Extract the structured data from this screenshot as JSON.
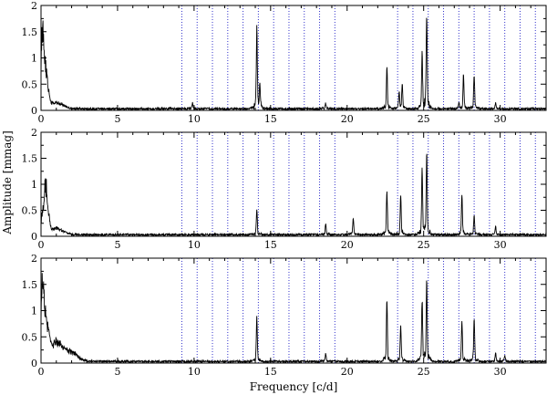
{
  "chart_data": {
    "type": "line",
    "xlabel": "Frequency [c/d]",
    "ylabel": "Amplitude [mmag]",
    "xlim": [
      0,
      33
    ],
    "ylim": [
      0,
      2
    ],
    "x_ticks": [
      0,
      5,
      10,
      15,
      20,
      25,
      30
    ],
    "y_ticks": [
      0,
      0.5,
      1,
      1.5,
      2
    ],
    "y_tick_labels": [
      "0",
      "0.5",
      "1",
      "1.5",
      "2"
    ],
    "grid": false,
    "marker_lines": {
      "color": "#3333cc",
      "style": "dotted",
      "x": [
        9.2,
        10.2,
        11.2,
        12.2,
        13.2,
        14.2,
        15.2,
        16.2,
        17.2,
        18.2,
        19.2,
        23.3,
        24.3,
        25.3,
        26.3,
        27.3,
        28.3,
        29.3,
        30.3,
        31.3,
        32.3
      ]
    },
    "panels": [
      {
        "noise_level": 0.05,
        "low_freq": [
          [
            0.1,
            1.8
          ],
          [
            0.3,
            0.95
          ],
          [
            0.5,
            0.3
          ],
          [
            1.0,
            0.15
          ]
        ],
        "peaks": [
          [
            9.9,
            0.1
          ],
          [
            14.1,
            1.45
          ],
          [
            14.3,
            0.4
          ],
          [
            18.6,
            0.1
          ],
          [
            22.6,
            0.75
          ],
          [
            23.4,
            0.3
          ],
          [
            23.6,
            0.45
          ],
          [
            24.9,
            0.95
          ],
          [
            25.2,
            1.7
          ],
          [
            27.3,
            0.1
          ],
          [
            27.6,
            0.6
          ],
          [
            28.3,
            0.6
          ],
          [
            29.7,
            0.1
          ]
        ]
      },
      {
        "noise_level": 0.05,
        "low_freq": [
          [
            0.1,
            0.5
          ],
          [
            0.3,
            1.15
          ],
          [
            0.5,
            0.35
          ],
          [
            1.0,
            0.15
          ]
        ],
        "peaks": [
          [
            14.1,
            0.45
          ],
          [
            18.6,
            0.2
          ],
          [
            20.4,
            0.3
          ],
          [
            22.6,
            0.8
          ],
          [
            23.5,
            0.7
          ],
          [
            24.9,
            1.2
          ],
          [
            25.2,
            1.5
          ],
          [
            27.5,
            0.7
          ],
          [
            28.3,
            0.35
          ],
          [
            29.7,
            0.15
          ]
        ]
      },
      {
        "noise_level": 0.05,
        "low_freq": [
          [
            0.1,
            1.9
          ],
          [
            0.3,
            0.85
          ],
          [
            0.5,
            0.5
          ],
          [
            1.0,
            0.45
          ],
          [
            2.0,
            0.2
          ]
        ],
        "peaks": [
          [
            14.1,
            0.8
          ],
          [
            18.6,
            0.15
          ],
          [
            22.6,
            1.1
          ],
          [
            23.5,
            0.65
          ],
          [
            24.9,
            1.1
          ],
          [
            25.2,
            1.45
          ],
          [
            27.5,
            0.75
          ],
          [
            28.3,
            0.75
          ],
          [
            29.7,
            0.15
          ],
          [
            30.3,
            0.1
          ]
        ]
      }
    ]
  }
}
